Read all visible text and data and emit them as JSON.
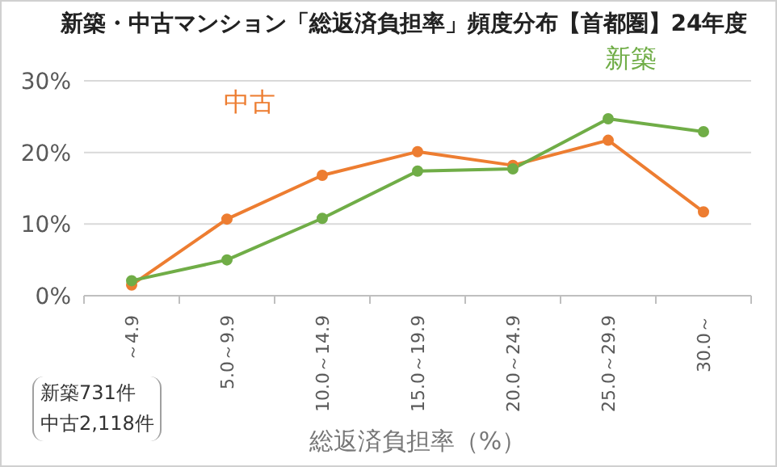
{
  "chart_data": {
    "type": "line",
    "title": "新築・中古マンション「総返済負担率」頻度分布【首都圏】24年度",
    "categories": [
      "～4.9",
      "5.0～9.9",
      "10.0～14.9",
      "15.0～19.9",
      "20.0～24.9",
      "25.0～29.9",
      "30.0～"
    ],
    "series": [
      {
        "name": "中古",
        "color": "#ed7d31",
        "values": [
          1.5,
          10.7,
          16.8,
          20.1,
          18.2,
          21.7,
          11.7
        ]
      },
      {
        "name": "新築",
        "color": "#70ad47",
        "values": [
          2.1,
          5.0,
          10.8,
          17.4,
          17.7,
          24.7,
          22.9
        ]
      }
    ],
    "xlabel": "総返済負担率（%）",
    "ylim": [
      0,
      30
    ],
    "yticks": [
      {
        "value": 0,
        "label": "0%"
      },
      {
        "value": 10,
        "label": "10%"
      },
      {
        "value": 20,
        "label": "20%"
      },
      {
        "value": 30,
        "label": "30%"
      }
    ],
    "grid": "y",
    "marker": "circle",
    "line_style": "solid",
    "legend": false,
    "annotations": [
      "新築731件",
      "中古2,118件"
    ]
  }
}
